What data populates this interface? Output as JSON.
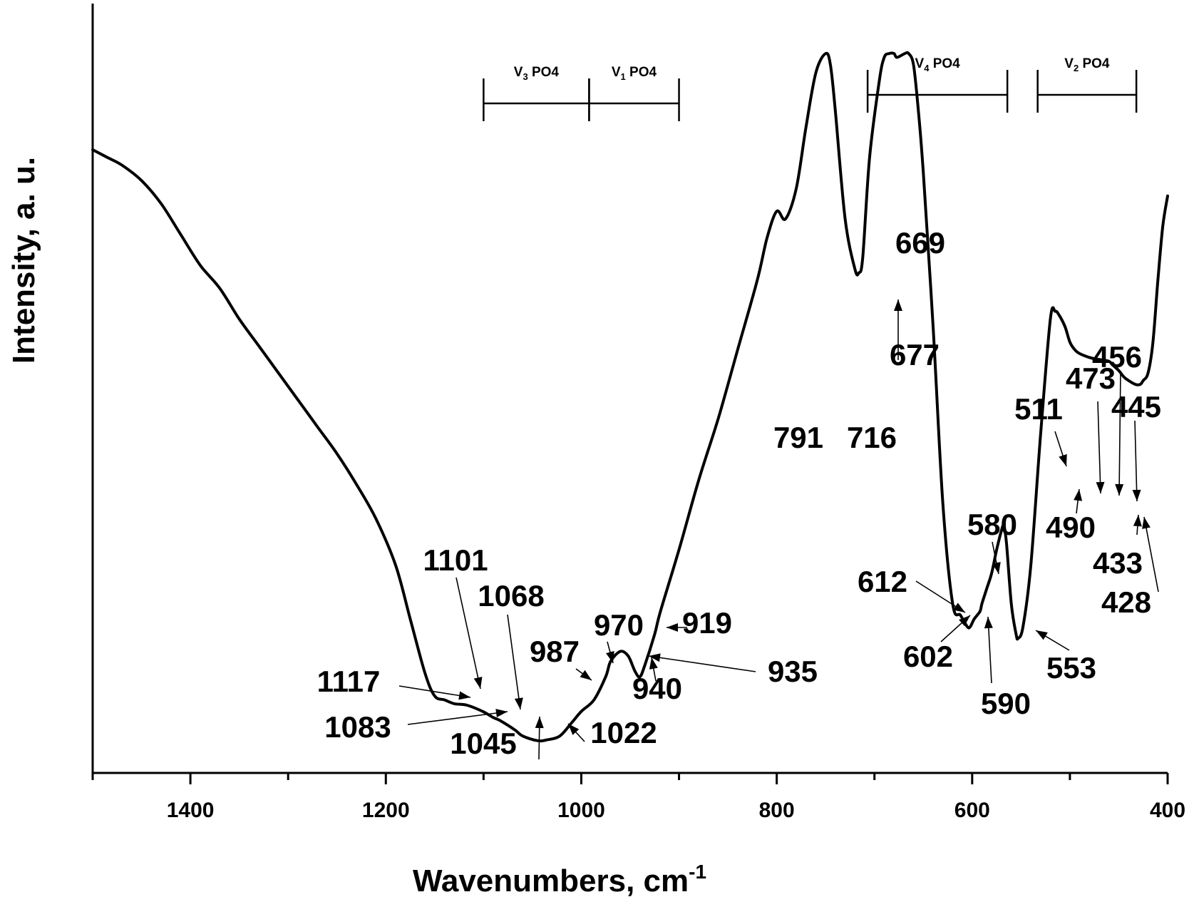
{
  "chart_data": {
    "type": "line",
    "title": "",
    "xlabel": "Wavenumbers, cm",
    "xlabel_superscript": "-1",
    "ylabel": "Intensity, a. u.",
    "xlim": [
      1500,
      400
    ],
    "x_reversed": true,
    "ylim": [
      0,
      1
    ],
    "y_tick_labels": false,
    "x_ticks": [
      1400,
      1200,
      1000,
      800,
      600,
      400
    ],
    "x_minor_ticks": [
      1500,
      1300,
      1100,
      900,
      700,
      500
    ],
    "series": [
      {
        "x": [
          1500,
          1485,
          1470,
          1450,
          1430,
          1410,
          1390,
          1370,
          1350,
          1330,
          1310,
          1290,
          1270,
          1250,
          1230,
          1210,
          1190,
          1175,
          1160,
          1150,
          1140,
          1130,
          1117,
          1101,
          1090,
          1083,
          1068,
          1060,
          1045,
          1035,
          1022,
          1010,
          1000,
          987,
          975,
          970,
          960,
          952,
          945,
          940,
          935,
          925,
          919,
          900,
          880,
          860,
          840,
          820,
          810,
          800,
          791,
          780,
          770,
          760,
          750,
          745,
          740,
          730,
          720,
          716,
          712,
          705,
          695,
          690,
          685,
          680,
          677,
          669,
          665,
          660,
          655,
          650,
          640,
          630,
          620,
          612,
          605,
          602,
          598,
          592,
          590,
          585,
          580,
          575,
          570,
          568,
          565,
          560,
          555,
          553,
          548,
          540,
          530,
          520,
          515,
          511,
          505,
          500,
          495,
          490,
          480,
          473,
          468,
          460,
          456,
          450,
          445,
          440,
          433,
          428,
          425,
          420,
          415,
          410,
          405,
          400
        ],
        "y": [
          0.81,
          0.8,
          0.79,
          0.77,
          0.74,
          0.7,
          0.66,
          0.63,
          0.59,
          0.555,
          0.52,
          0.485,
          0.45,
          0.415,
          0.375,
          0.33,
          0.27,
          0.2,
          0.13,
          0.1,
          0.095,
          0.09,
          0.088,
          0.08,
          0.072,
          0.068,
          0.056,
          0.048,
          0.042,
          0.043,
          0.048,
          0.065,
          0.08,
          0.095,
          0.125,
          0.145,
          0.158,
          0.152,
          0.132,
          0.125,
          0.14,
          0.18,
          0.21,
          0.29,
          0.38,
          0.46,
          0.55,
          0.64,
          0.695,
          0.73,
          0.72,
          0.76,
          0.84,
          0.91,
          0.935,
          0.92,
          0.86,
          0.72,
          0.655,
          0.65,
          0.67,
          0.8,
          0.9,
          0.93,
          0.935,
          0.935,
          0.93,
          0.935,
          0.935,
          0.92,
          0.86,
          0.78,
          0.58,
          0.35,
          0.22,
          0.205,
          0.19,
          0.19,
          0.2,
          0.21,
          0.22,
          0.24,
          0.26,
          0.29,
          0.315,
          0.32,
          0.3,
          0.22,
          0.18,
          0.175,
          0.19,
          0.27,
          0.44,
          0.59,
          0.6,
          0.595,
          0.58,
          0.56,
          0.55,
          0.545,
          0.54,
          0.538,
          0.537,
          0.535,
          0.53,
          0.523,
          0.515,
          0.51,
          0.505,
          0.505,
          0.51,
          0.52,
          0.56,
          0.64,
          0.71,
          0.75
        ]
      }
    ],
    "peak_labels": [
      "669",
      "677",
      "791",
      "716",
      "511",
      "473",
      "456",
      "445",
      "490",
      "433",
      "428",
      "580",
      "612",
      "602",
      "590",
      "553",
      "1101",
      "1068",
      "970",
      "919",
      "987",
      "935",
      "940",
      "1117",
      "1083",
      "1045",
      "1022"
    ],
    "band_labels": [
      {
        "label": "V",
        "sub": "3",
        "suffix": " PO4",
        "from": 1100,
        "to": 992
      },
      {
        "label": "V",
        "sub": "1",
        "suffix": " PO4",
        "from": 992,
        "to": 900
      },
      {
        "label": "V",
        "sub": "4",
        "suffix": " PO4",
        "from": 707,
        "to": 564
      },
      {
        "label": "V",
        "sub": "2",
        "suffix": " PO4",
        "from": 533,
        "to": 432
      }
    ],
    "grid": false,
    "legend": "none"
  }
}
